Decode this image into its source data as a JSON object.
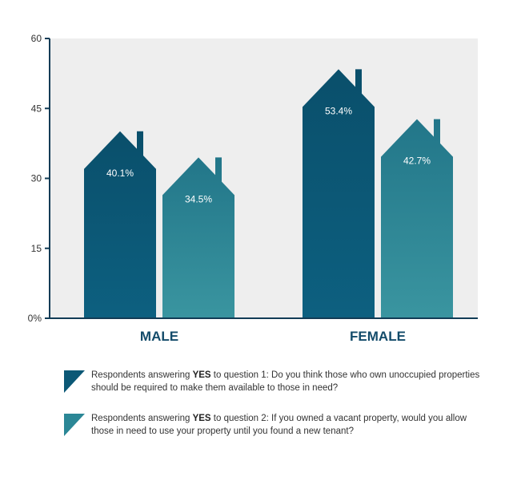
{
  "chart_data": {
    "type": "bar",
    "categories": [
      "MALE",
      "FEMALE"
    ],
    "series": [
      {
        "values": [
          40.1,
          53.4
        ],
        "labels": [
          "40.1%",
          "53.4%"
        ],
        "color": "#0b5876"
      },
      {
        "values": [
          34.5,
          42.7
        ],
        "labels": [
          "34.5%",
          "42.7%"
        ],
        "color": "#2b8796"
      }
    ],
    "ylim": [
      0,
      60
    ],
    "yticks": [
      0,
      15,
      30,
      45,
      60
    ],
    "ytick_labels": [
      "0%",
      "15",
      "30",
      "45",
      "60"
    ],
    "grid": false,
    "plot_background": "#eeeeee",
    "axis_color": "#123c56",
    "bar_shape": "house"
  },
  "legend": [
    {
      "pre": "Respondents answering ",
      "bold": "YES",
      "post": " to question 1: Do you think those who own unoccupied properties should be required to make them available to those in need?",
      "color": "#0b5876"
    },
    {
      "pre": "Respondents answering ",
      "bold": "YES",
      "post": " to question 2: If you owned a vacant property, would you allow those in need to use your property until you found a new tenant?",
      "color": "#2b8796"
    }
  ]
}
